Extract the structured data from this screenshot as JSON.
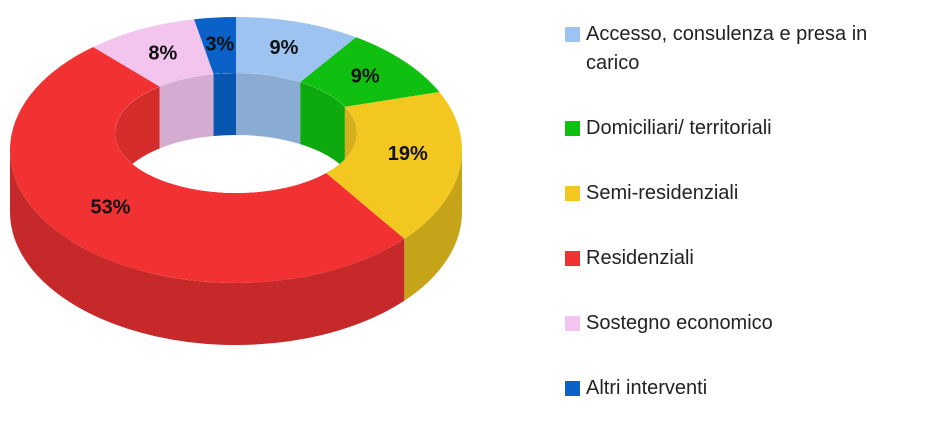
{
  "chart_data": {
    "type": "pie",
    "categories": [
      "Accesso, consulenza e presa in carico",
      "Domiciliari/ territoriali",
      "Semi-residenziali",
      "Residenziali",
      "Sostegno economico",
      "Altri interventi"
    ],
    "values": [
      9,
      9,
      19,
      53,
      8,
      3
    ],
    "value_labels": [
      "9%",
      "9%",
      "19%",
      "53%",
      "8%",
      "3%"
    ],
    "colors": [
      "#9dc3f0",
      "#10c010",
      "#f2c820",
      "#f23232",
      "#f2c4ee",
      "#0a62c8"
    ],
    "legend": "right"
  }
}
